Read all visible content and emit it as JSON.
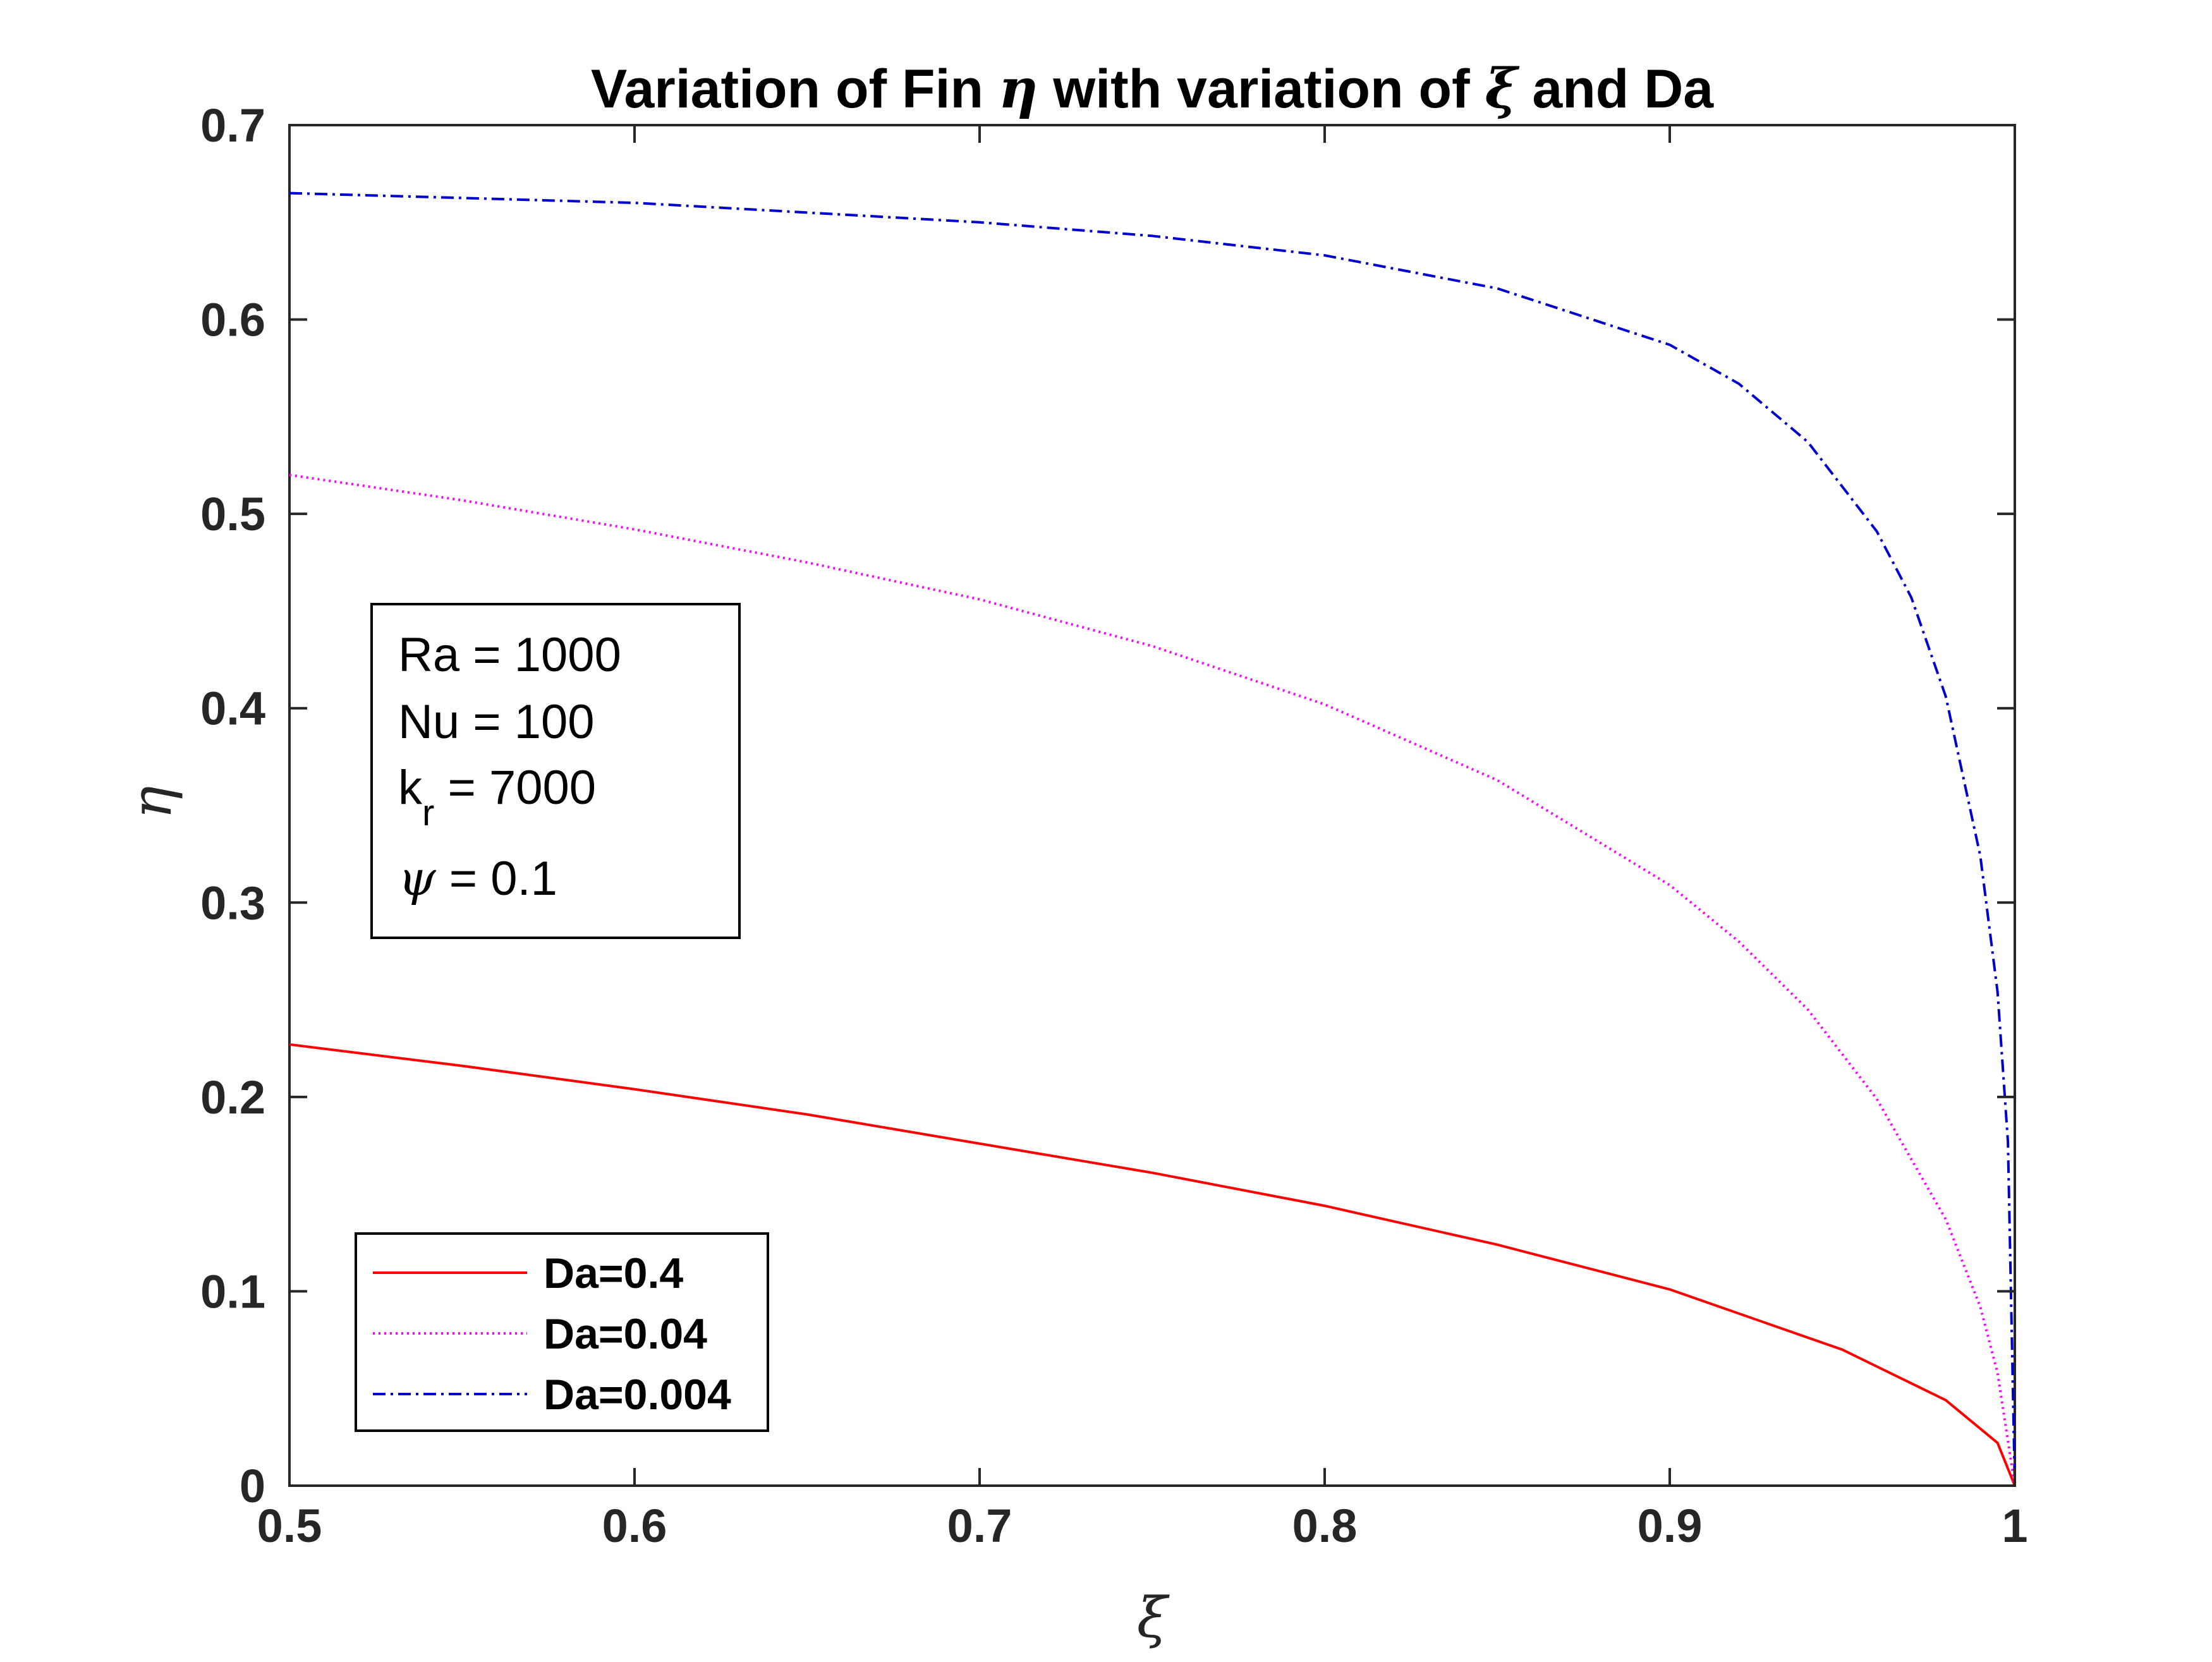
{
  "chart_data": {
    "type": "line",
    "title": {
      "prefix": "Variation of Fin ",
      "eta": "η",
      "middle": " with variation of ",
      "xi": "ξ",
      "suffix": " and Da"
    },
    "xlabel": "ξ",
    "ylabel": "η",
    "xlim": [
      0.5,
      1
    ],
    "ylim": [
      0,
      0.7
    ],
    "xticks": [
      0.5,
      0.6,
      0.7,
      0.8,
      0.9,
      1
    ],
    "yticks": [
      0,
      0.1,
      0.2,
      0.3,
      0.4,
      0.5,
      0.6,
      0.7
    ],
    "xtick_labels": [
      "0.5",
      "0.6",
      "0.7",
      "0.8",
      "0.9",
      "1"
    ],
    "ytick_labels": [
      "0",
      "0.1",
      "0.2",
      "0.3",
      "0.4",
      "0.5",
      "0.6",
      "0.7"
    ],
    "grid": false,
    "legend_position": "bottom-left",
    "series": [
      {
        "name": "Da=0.4",
        "color": "#ff0000",
        "line_style": "solid",
        "x": [
          0.5,
          0.55,
          0.6,
          0.65,
          0.7,
          0.75,
          0.8,
          0.85,
          0.9,
          0.95,
          0.98,
          0.995,
          1.0
        ],
        "y": [
          0.227,
          0.216,
          0.204,
          0.191,
          0.176,
          0.161,
          0.144,
          0.124,
          0.101,
          0.07,
          0.044,
          0.022,
          0.0
        ]
      },
      {
        "name": "Da=0.04",
        "color": "#ff00ff",
        "line_style": "dotted",
        "x": [
          0.5,
          0.55,
          0.6,
          0.65,
          0.7,
          0.75,
          0.8,
          0.85,
          0.9,
          0.92,
          0.94,
          0.96,
          0.98,
          0.99,
          0.995,
          1.0
        ],
        "y": [
          0.52,
          0.507,
          0.492,
          0.475,
          0.456,
          0.432,
          0.402,
          0.363,
          0.309,
          0.28,
          0.245,
          0.199,
          0.137,
          0.092,
          0.058,
          0.0
        ]
      },
      {
        "name": "Da=0.004",
        "color": "#0000cc",
        "line_style": "dashdot",
        "x": [
          0.5,
          0.6,
          0.7,
          0.75,
          0.8,
          0.85,
          0.9,
          0.92,
          0.94,
          0.96,
          0.97,
          0.98,
          0.99,
          0.995,
          0.998,
          1.0
        ],
        "y": [
          0.665,
          0.66,
          0.65,
          0.643,
          0.633,
          0.616,
          0.587,
          0.567,
          0.537,
          0.491,
          0.457,
          0.406,
          0.324,
          0.254,
          0.177,
          0.0
        ]
      }
    ],
    "annotation": {
      "lines": [
        {
          "text": "Ra = 1000"
        },
        {
          "text": "Nu = 100"
        },
        {
          "main": "k",
          "sub": "r",
          "rest": " = 7000"
        },
        {
          "sym": "ψ",
          "rest": " = 0.1"
        }
      ]
    }
  }
}
